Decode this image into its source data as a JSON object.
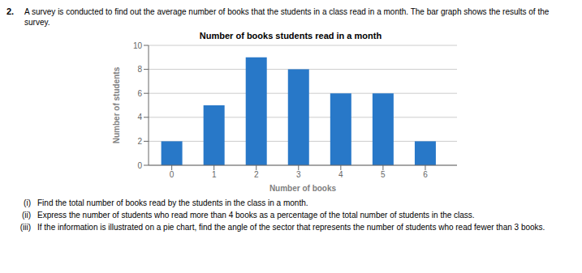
{
  "chart_data": {
    "type": "bar",
    "title": "Number of books students read in a month",
    "xlabel": "Number of books",
    "ylabel": "Number of students",
    "x": [
      0,
      1,
      2,
      3,
      4,
      5,
      6
    ],
    "values": [
      2,
      5,
      9,
      8,
      6,
      6,
      2
    ],
    "color": "#2878c8",
    "xlim": [
      -0.55,
      6.75
    ],
    "xticks": [
      0,
      1,
      2,
      3,
      4,
      5,
      6
    ],
    "ylim": [
      0,
      10
    ],
    "yticks": [
      0,
      2,
      4,
      6,
      8,
      10
    ],
    "grid": true,
    "annotations": [
      "2.",
      "A survey is conducted to find out the average number of books that the students in a class read in a month. The bar graph shows the results of the survey.",
      "(i)",
      "Find the total number of books read by the students in the class in a month.",
      "(ii)",
      "Express the number of students who read more than 4 books as a percentage of the total number of students in the class.",
      "(iii)",
      "If the information is illustrated on a pie chart, find the angle of the sector that represents the number of students who read fewer than 3 books."
    ]
  }
}
